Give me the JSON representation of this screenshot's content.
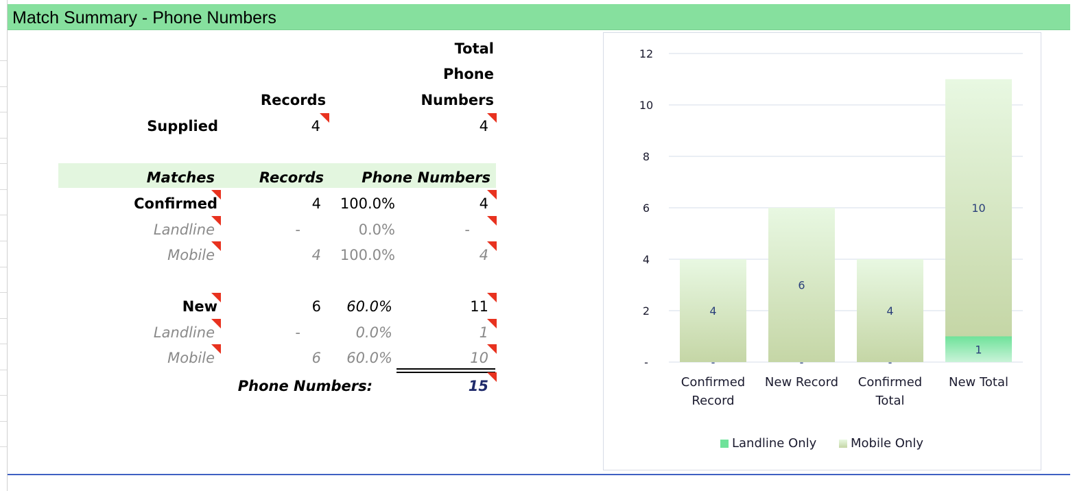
{
  "title": "Match Summary - Phone Numbers",
  "header": {
    "records": "Records",
    "total1": "Total",
    "total2": "Phone",
    "total3": "Numbers"
  },
  "supplied": {
    "label": "Supplied",
    "records": "4",
    "phone": "4"
  },
  "matches_header": {
    "label": "Matches",
    "records": "Records",
    "phone": "Phone Numbers"
  },
  "confirmed": {
    "label": "Confirmed",
    "records": "4",
    "pct": "100.0%",
    "phone": "4"
  },
  "confirmed_landline": {
    "label": "Landline",
    "records": "-",
    "pct": "0.0%",
    "phone": "-"
  },
  "confirmed_mobile": {
    "label": "Mobile",
    "records": "4",
    "pct": "100.0%",
    "phone": "4"
  },
  "new": {
    "label": "New",
    "records": "6",
    "pct": "60.0%",
    "phone": "11"
  },
  "new_landline": {
    "label": "Landline",
    "records": "-",
    "pct": "0.0%",
    "phone": "1"
  },
  "new_mobile": {
    "label": "Mobile",
    "records": "6",
    "pct": "60.0%",
    "phone": "10"
  },
  "total": {
    "label": "Phone Numbers:",
    "value": "15"
  },
  "colors": {
    "title_bar": "#86e09e",
    "band": "#e3f6df",
    "flag": "#e8321f",
    "landline": "#6fe29a",
    "mobile_top": "#e8f8e2",
    "mobile_bottom": "#c5d6a6"
  },
  "chart_data": {
    "type": "bar",
    "stacked": true,
    "categories": [
      "Confirmed Record",
      "New Record",
      "Confirmed Total",
      "New Total"
    ],
    "series": [
      {
        "name": "Landline Only",
        "values": [
          0,
          0,
          0,
          1
        ],
        "labels": [
          "-",
          "-",
          "-",
          "1"
        ]
      },
      {
        "name": "Mobile Only",
        "values": [
          4,
          6,
          4,
          10
        ],
        "labels": [
          "4",
          "6",
          "4",
          "10"
        ]
      }
    ],
    "y_ticks": [
      "-",
      "2",
      "4",
      "6",
      "8",
      "10",
      "12"
    ],
    "ylim": [
      0,
      12
    ],
    "grid": true,
    "legend_position": "bottom"
  }
}
